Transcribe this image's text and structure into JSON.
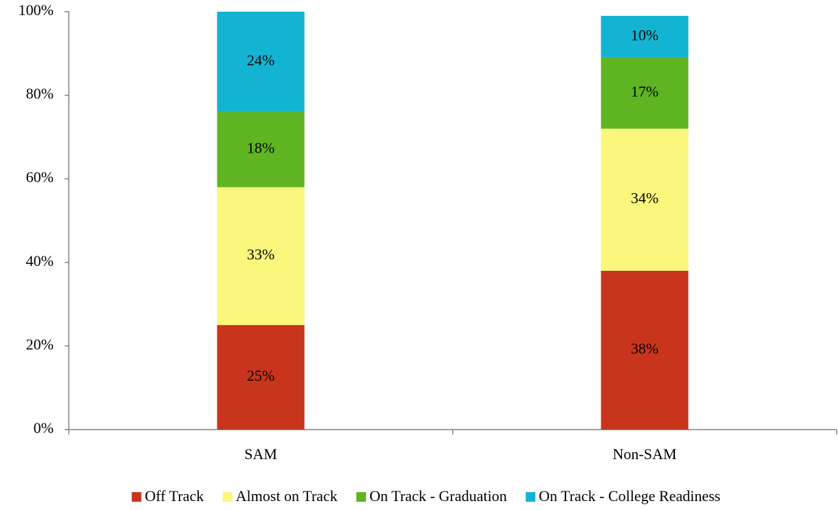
{
  "chart_data": {
    "type": "stacked-bar",
    "categories": [
      "SAM",
      "Non-SAM"
    ],
    "series": [
      {
        "name": "Off Track",
        "color": "#c9351c",
        "values": [
          25,
          38
        ],
        "value_labels": [
          "25%",
          "38%"
        ]
      },
      {
        "name": "Almost on Track",
        "color": "#fbf67c",
        "values": [
          33,
          34
        ],
        "value_labels": [
          "33%",
          "34%"
        ]
      },
      {
        "name": "On Track - Graduation",
        "color": "#5fb521",
        "values": [
          18,
          17
        ],
        "value_labels": [
          "18%",
          "17%"
        ]
      },
      {
        "name": "On Track - College Readiness",
        "color": "#12b4d1",
        "values": [
          24,
          10
        ],
        "value_labels": [
          "24%",
          "10%"
        ]
      }
    ],
    "ylim": [
      0,
      100
    ],
    "yticks": [
      {
        "value": 0,
        "label": "0%"
      },
      {
        "value": 20,
        "label": "20%"
      },
      {
        "value": 40,
        "label": "40%"
      },
      {
        "value": 60,
        "label": "60%"
      },
      {
        "value": 80,
        "label": "80%"
      },
      {
        "value": 100,
        "label": "100%"
      }
    ],
    "grid": false,
    "legend": "bottom"
  }
}
